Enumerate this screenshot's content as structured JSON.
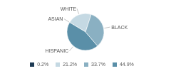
{
  "chart_data": {
    "type": "pie",
    "categories": [
      "WHITE",
      "ASIAN",
      "HISPANIC",
      "BLACK"
    ],
    "values": [
      21.2,
      0.2,
      44.9,
      33.7
    ],
    "value_labels": [
      "21.2%",
      "0.2%",
      "44.9%",
      "33.7%"
    ],
    "colors": [
      "#c5d9e3",
      "#1e3a54",
      "#5a8fa8",
      "#8ab0c2"
    ],
    "legend": "bottom"
  }
}
